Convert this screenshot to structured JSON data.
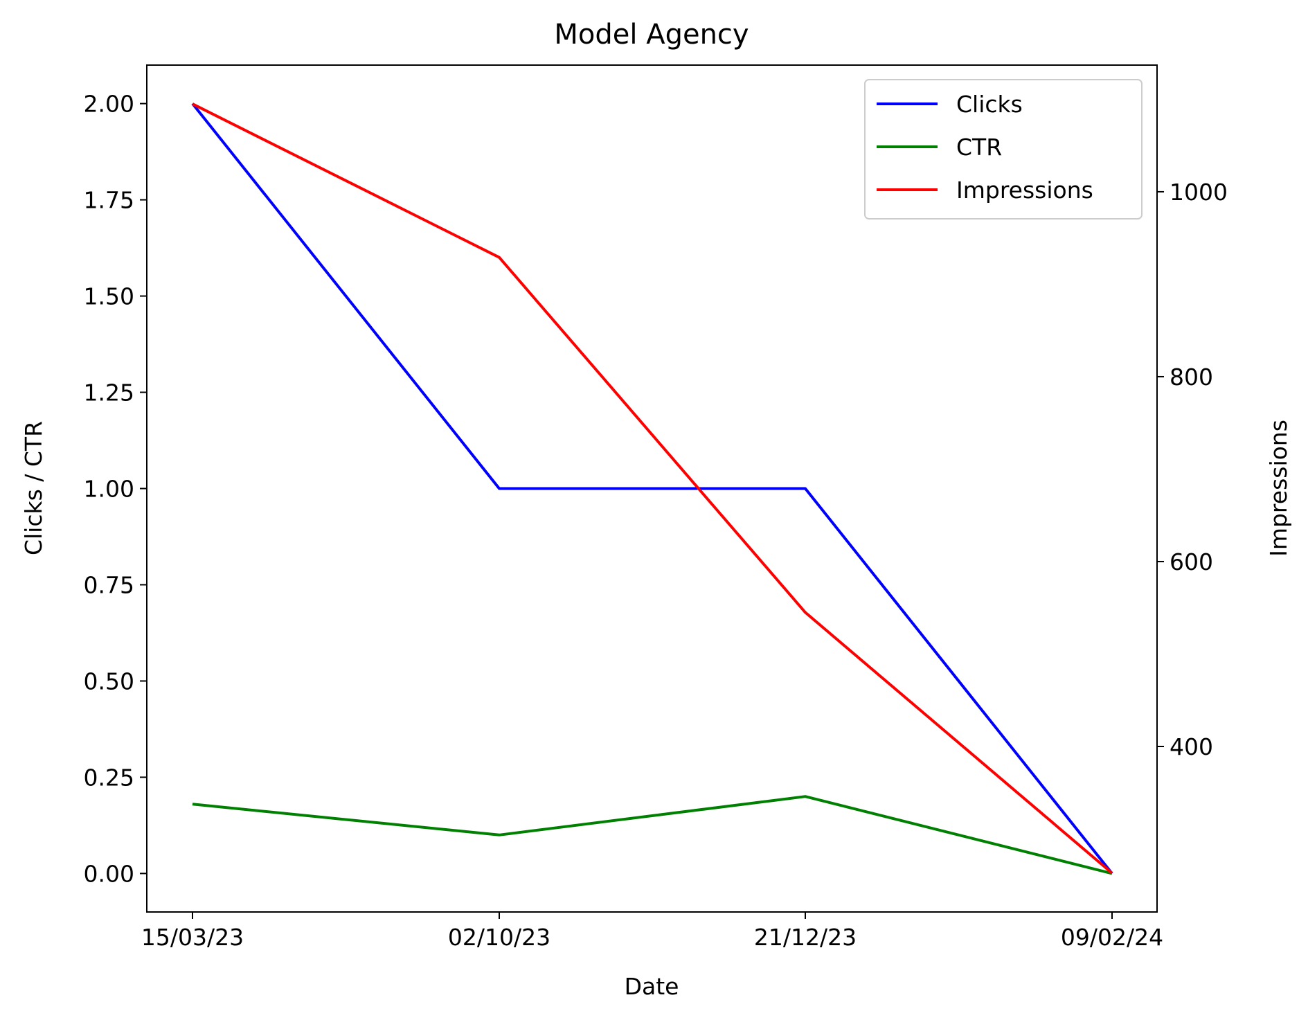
{
  "chart_data": {
    "type": "line",
    "title": "Model Agency",
    "xlabel": "Date",
    "ylabel": "Clicks / CTR",
    "y2label": "Impressions",
    "categories": [
      "15/03/23",
      "02/10/23",
      "21/12/23",
      "09/02/24"
    ],
    "ylim": [
      -0.1,
      2.1
    ],
    "yticks": [
      0.0,
      0.25,
      0.5,
      0.75,
      1.0,
      1.25,
      1.5,
      1.75,
      2.0
    ],
    "ytick_labels": [
      "0.00",
      "0.25",
      "0.50",
      "0.75",
      "1.00",
      "1.25",
      "1.50",
      "1.75",
      "2.00"
    ],
    "y2lim": [
      221,
      1137
    ],
    "y2ticks": [
      400,
      600,
      800,
      1000
    ],
    "y2tick_labels": [
      "400",
      "600",
      "800",
      "1000"
    ],
    "series": [
      {
        "name": "Clicks",
        "axis": "left",
        "color": "#0000ff",
        "values": [
          2,
          1,
          1,
          0
        ]
      },
      {
        "name": "CTR",
        "axis": "left",
        "color": "#008000",
        "values": [
          0.18,
          0.1,
          0.2,
          0.0
        ]
      },
      {
        "name": "Impressions",
        "axis": "right",
        "color": "#ff0000",
        "values": [
          1095,
          929,
          545,
          263
        ]
      }
    ],
    "legend": {
      "position": "top-right"
    },
    "grid": false
  }
}
